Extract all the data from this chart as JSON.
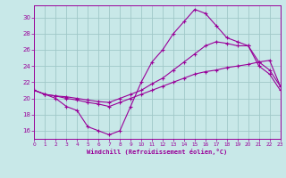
{
  "background_color": "#c8e8e8",
  "grid_color": "#a0c8c8",
  "line_color": "#990099",
  "xlabel": "Windchill (Refroidissement éolien,°C)",
  "xlim": [
    0,
    23
  ],
  "ylim": [
    15.0,
    31.5
  ],
  "yticks": [
    16,
    18,
    20,
    22,
    24,
    26,
    28,
    30
  ],
  "xticks": [
    0,
    1,
    2,
    3,
    4,
    5,
    6,
    7,
    8,
    9,
    10,
    11,
    12,
    13,
    14,
    15,
    16,
    17,
    18,
    19,
    20,
    21,
    22,
    23
  ],
  "line1_x": [
    0,
    1,
    2,
    3,
    4,
    5,
    6,
    7,
    8,
    9,
    10,
    11,
    12,
    13,
    14,
    15,
    16,
    17,
    18,
    19,
    20,
    21,
    22,
    23
  ],
  "line1_y": [
    21.0,
    20.5,
    20.0,
    19.0,
    18.5,
    16.5,
    16.0,
    15.5,
    16.0,
    19.0,
    22.0,
    24.5,
    26.0,
    28.0,
    29.5,
    31.0,
    30.5,
    29.0,
    27.5,
    27.0,
    26.5,
    24.0,
    23.0,
    21.0
  ],
  "line2_x": [
    0,
    1,
    2,
    3,
    4,
    5,
    6,
    7,
    8,
    9,
    10,
    11,
    12,
    13,
    14,
    15,
    16,
    17,
    18,
    19,
    20,
    21,
    22,
    23
  ],
  "line2_y": [
    21.0,
    20.5,
    20.3,
    20.0,
    19.8,
    19.5,
    19.3,
    19.0,
    19.5,
    20.0,
    20.5,
    21.0,
    21.5,
    22.0,
    22.5,
    23.0,
    23.3,
    23.5,
    23.8,
    24.0,
    24.2,
    24.5,
    24.7,
    21.5
  ],
  "line3_x": [
    0,
    1,
    2,
    3,
    4,
    5,
    6,
    7,
    8,
    9,
    10,
    11,
    12,
    13,
    14,
    15,
    16,
    17,
    18,
    19,
    20,
    21,
    22,
    23
  ],
  "line3_y": [
    21.0,
    20.5,
    20.3,
    20.2,
    20.0,
    19.8,
    19.6,
    19.5,
    20.0,
    20.5,
    21.0,
    21.8,
    22.5,
    23.5,
    24.5,
    25.5,
    26.5,
    27.0,
    26.8,
    26.5,
    26.5,
    24.5,
    23.5,
    21.5
  ]
}
